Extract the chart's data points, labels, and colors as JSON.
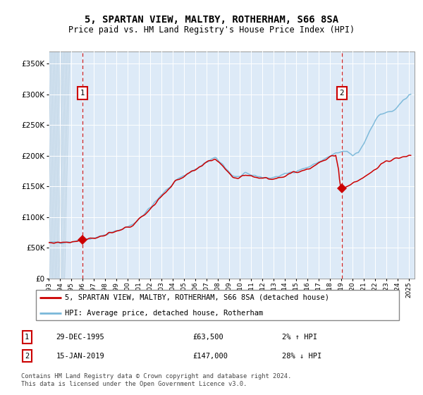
{
  "title": "5, SPARTAN VIEW, MALTBY, ROTHERHAM, S66 8SA",
  "subtitle": "Price paid vs. HM Land Registry's House Price Index (HPI)",
  "sale1_date": "29-DEC-1995",
  "sale1_price": 63500,
  "sale2_date": "15-JAN-2019",
  "sale2_price": 147000,
  "sale1_pct": "2% ↑ HPI",
  "sale2_pct": "28% ↓ HPI",
  "legend_line1": "5, SPARTAN VIEW, MALTBY, ROTHERHAM, S66 8SA (detached house)",
  "legend_line2": "HPI: Average price, detached house, Rotherham",
  "footer": "Contains HM Land Registry data © Crown copyright and database right 2024.\nThis data is licensed under the Open Government Licence v3.0.",
  "hpi_color": "#7ab8d9",
  "price_color": "#cc0000",
  "bg_color": "#ddeaf7",
  "ylim": [
    0,
    370000
  ],
  "yticks": [
    0,
    50000,
    100000,
    150000,
    200000,
    250000,
    300000,
    350000
  ],
  "sale1_x_year": 1995.99,
  "sale2_x_year": 2019.04,
  "xmin": 1993.0,
  "xmax": 2025.5
}
